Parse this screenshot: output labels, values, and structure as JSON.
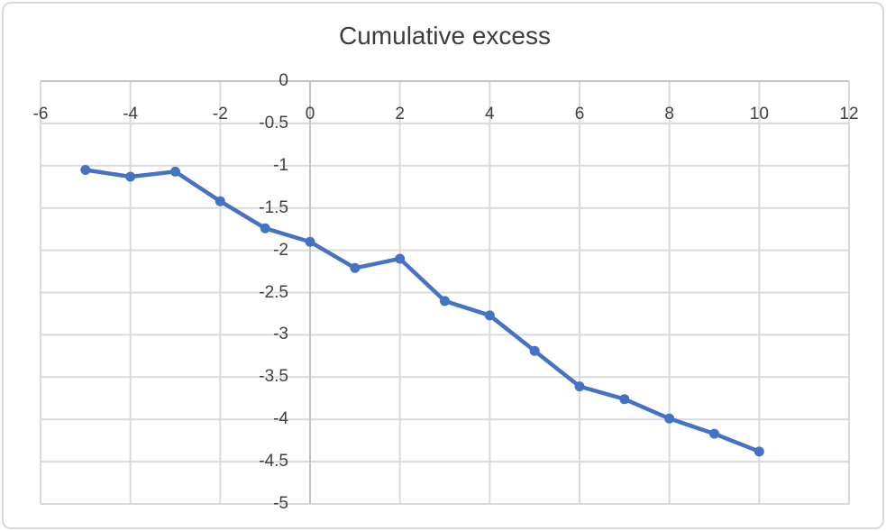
{
  "chart_data": {
    "type": "line",
    "title": "Cumulative excess",
    "xlabel": "",
    "ylabel": "",
    "xlim": [
      -6,
      12
    ],
    "ylim": [
      -5,
      0
    ],
    "xticks": [
      -6,
      -4,
      -2,
      0,
      2,
      4,
      6,
      8,
      10,
      12
    ],
    "xtick_labels": [
      "-6",
      "-4",
      "-2",
      "0",
      "2",
      "4",
      "6",
      "8",
      "10",
      "12"
    ],
    "yticks": [
      0,
      -0.5,
      -1,
      -1.5,
      -2,
      -2.5,
      -3,
      -3.5,
      -4,
      -4.5,
      -5
    ],
    "ytick_labels": [
      "0",
      "-0.5",
      "-1",
      "-1.5",
      "-2",
      "-2.5",
      "-3",
      "-3.5",
      "-4",
      "-4.5",
      "-5"
    ],
    "grid": true,
    "legend": "none",
    "series": [
      {
        "name": "Cumulative excess",
        "x": [
          -5,
          -4,
          -3,
          -2,
          -1,
          0,
          1,
          2,
          3,
          4,
          5,
          6,
          7,
          8,
          9,
          10
        ],
        "y": [
          -1.05,
          -1.13,
          -1.07,
          -1.42,
          -1.74,
          -1.9,
          -2.21,
          -2.1,
          -2.6,
          -2.77,
          -3.19,
          -3.61,
          -3.76,
          -3.99,
          -4.17,
          -4.38
        ],
        "marker": "circle"
      }
    ],
    "colors": {
      "series_line": "#4472C4",
      "marker_fill": "#4472C4",
      "gridline": "#DADADA",
      "axis_line": "#C3C3C3",
      "tick_label": "#3F3F3F",
      "title": "#3D3D3D",
      "chart_border": "#D9D9D9",
      "background": "#FFFFFF"
    }
  }
}
